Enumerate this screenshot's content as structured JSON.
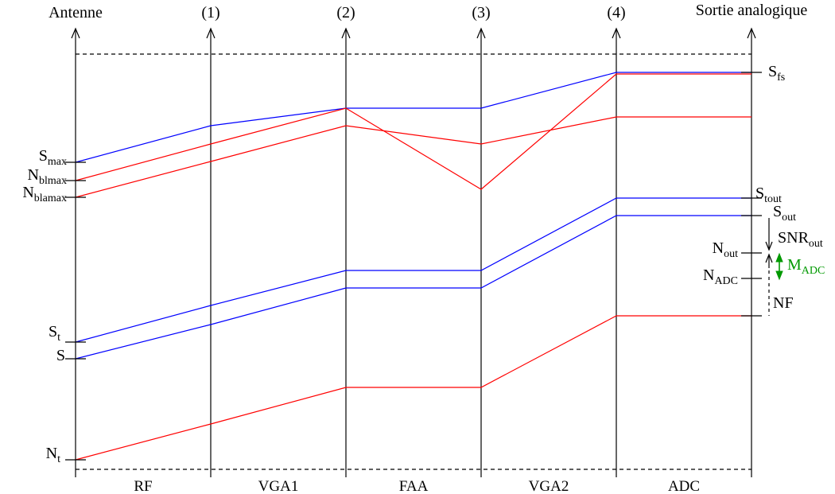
{
  "colors": {
    "signal": "#0000ff",
    "noise": "#ff0000",
    "margin": "#009900",
    "axis": "#000000"
  },
  "top_labels": {
    "antenna": "Antenne",
    "p1": "(1)",
    "p2": "(2)",
    "p3": "(3)",
    "p4": "(4)",
    "output": "Sortie analogique"
  },
  "stages": [
    "RF",
    "VGA1",
    "FAA",
    "VGA2",
    "ADC"
  ],
  "left_labels": {
    "smax": {
      "main": "S",
      "sub": "max"
    },
    "nblmax": {
      "main": "N",
      "sub": "blmax"
    },
    "nblamax": {
      "main": "N",
      "sub": "blamax"
    },
    "st": {
      "main": "S",
      "sub": "t"
    },
    "s": {
      "main": "S",
      "sub": ""
    },
    "nt": {
      "main": "N",
      "sub": "t"
    }
  },
  "right_labels": {
    "sfs": {
      "main": "S",
      "sub": "fs"
    },
    "stout": {
      "main": "S",
      "sub": "tout"
    },
    "sout": {
      "main": "S",
      "sub": "out"
    },
    "snrout": {
      "main": "SNR",
      "sub": "out"
    },
    "nout": {
      "main": "N",
      "sub": "out"
    },
    "madc": {
      "main": "M",
      "sub": "ADC"
    },
    "nadc": {
      "main": "N",
      "sub": "ADC"
    },
    "nf": {
      "main": "NF",
      "sub": ""
    }
  }
}
